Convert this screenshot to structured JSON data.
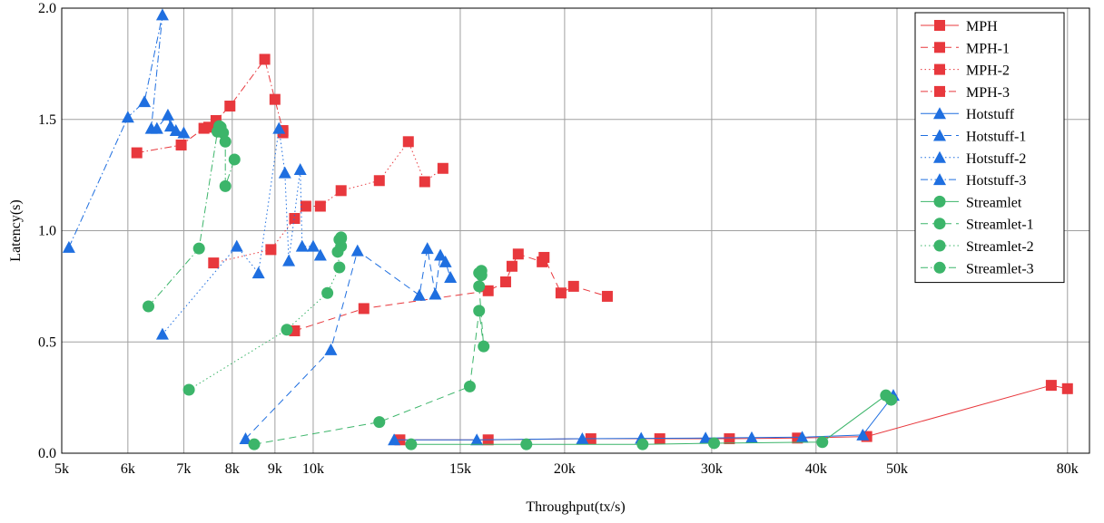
{
  "chart_data": {
    "type": "line",
    "xlabel": "Throughput(tx/s)",
    "ylabel": "Latency(s)",
    "x_scale": "log",
    "xlim": [
      5000,
      85000
    ],
    "ylim": [
      0,
      2.0
    ],
    "xticks": [
      {
        "v": 5000,
        "label": "5k"
      },
      {
        "v": 6000,
        "label": "6k"
      },
      {
        "v": 7000,
        "label": "7k"
      },
      {
        "v": 8000,
        "label": "8k"
      },
      {
        "v": 9000,
        "label": "9k"
      },
      {
        "v": 10000,
        "label": "10k"
      },
      {
        "v": 15000,
        "label": "15k"
      },
      {
        "v": 20000,
        "label": "20k"
      },
      {
        "v": 30000,
        "label": "30k"
      },
      {
        "v": 40000,
        "label": "40k"
      },
      {
        "v": 50000,
        "label": "50k"
      },
      {
        "v": 80000,
        "label": "80k"
      }
    ],
    "yticks": [
      {
        "v": 0.0,
        "label": "0.0"
      },
      {
        "v": 0.5,
        "label": "0.5"
      },
      {
        "v": 1.0,
        "label": "1.0"
      },
      {
        "v": 1.5,
        "label": "1.5"
      },
      {
        "v": 2.0,
        "label": "2.0"
      }
    ],
    "grid": true,
    "legend_position": "top-right",
    "series": [
      {
        "name": "MPH",
        "color": "#e8383d",
        "marker": "square",
        "dash": "solid",
        "points": [
          [
            12700,
            0.06
          ],
          [
            16200,
            0.06
          ],
          [
            21500,
            0.065
          ],
          [
            26000,
            0.065
          ],
          [
            31500,
            0.065
          ],
          [
            38000,
            0.068
          ],
          [
            46000,
            0.075
          ],
          [
            76500,
            0.305
          ],
          [
            80000,
            0.29
          ]
        ]
      },
      {
        "name": "MPH-1",
        "color": "#e8383d",
        "marker": "square",
        "dash": "dashed",
        "points": [
          [
            9500,
            0.55
          ],
          [
            11500,
            0.65
          ],
          [
            16200,
            0.73
          ],
          [
            17000,
            0.77
          ],
          [
            17300,
            0.84
          ],
          [
            17600,
            0.895
          ],
          [
            18800,
            0.86
          ],
          [
            18900,
            0.88
          ],
          [
            19800,
            0.72
          ],
          [
            20500,
            0.75
          ],
          [
            22500,
            0.705
          ]
        ]
      },
      {
        "name": "MPH-2",
        "color": "#e8383d",
        "marker": "square",
        "dash": "dotted",
        "points": [
          [
            7600,
            0.855
          ],
          [
            8900,
            0.915
          ],
          [
            9500,
            1.055
          ],
          [
            9800,
            1.11
          ],
          [
            10200,
            1.11
          ],
          [
            10800,
            1.18
          ],
          [
            12000,
            1.225
          ],
          [
            13000,
            1.4
          ],
          [
            13600,
            1.22
          ],
          [
            14300,
            1.28
          ]
        ]
      },
      {
        "name": "MPH-3",
        "color": "#e8383d",
        "marker": "square",
        "dash": "dashdot",
        "points": [
          [
            6150,
            1.35
          ],
          [
            6950,
            1.385
          ],
          [
            7400,
            1.46
          ],
          [
            7500,
            1.465
          ],
          [
            7650,
            1.495
          ],
          [
            7950,
            1.56
          ],
          [
            8750,
            1.77
          ],
          [
            9000,
            1.59
          ],
          [
            9200,
            1.45
          ],
          [
            9200,
            1.44
          ]
        ]
      },
      {
        "name": "Hotstuff",
        "color": "#1f6fe0",
        "marker": "triangle",
        "dash": "solid",
        "points": [
          [
            12500,
            0.06
          ],
          [
            15700,
            0.06
          ],
          [
            21000,
            0.065
          ],
          [
            24700,
            0.067
          ],
          [
            29500,
            0.068
          ],
          [
            33500,
            0.07
          ],
          [
            38500,
            0.072
          ],
          [
            45500,
            0.082
          ],
          [
            49500,
            0.26
          ]
        ]
      },
      {
        "name": "Hotstuff-1",
        "color": "#1f6fe0",
        "marker": "triangle",
        "dash": "dashed",
        "points": [
          [
            8300,
            0.065
          ],
          [
            10500,
            0.465
          ],
          [
            11300,
            0.91
          ],
          [
            13400,
            0.71
          ],
          [
            13700,
            0.92
          ],
          [
            14000,
            0.715
          ],
          [
            14200,
            0.89
          ],
          [
            14400,
            0.86
          ],
          [
            14600,
            0.79
          ]
        ]
      },
      {
        "name": "Hotstuff-2",
        "color": "#1f6fe0",
        "marker": "triangle",
        "dash": "dotted",
        "points": [
          [
            6600,
            0.535
          ],
          [
            8100,
            0.93
          ],
          [
            8600,
            0.81
          ],
          [
            9100,
            1.46
          ],
          [
            9250,
            1.26
          ],
          [
            9350,
            0.865
          ],
          [
            9650,
            1.275
          ],
          [
            9700,
            0.93
          ],
          [
            10000,
            0.93
          ],
          [
            10200,
            0.89
          ]
        ]
      },
      {
        "name": "Hotstuff-3",
        "color": "#1f6fe0",
        "marker": "triangle",
        "dash": "dashdot",
        "points": [
          [
            5100,
            0.925
          ],
          [
            6000,
            1.51
          ],
          [
            6280,
            1.58
          ],
          [
            6600,
            1.97
          ],
          [
            6400,
            1.46
          ],
          [
            6500,
            1.46
          ],
          [
            6700,
            1.52
          ],
          [
            6750,
            1.47
          ],
          [
            6850,
            1.45
          ],
          [
            7000,
            1.44
          ]
        ]
      },
      {
        "name": "Streamlet",
        "color": "#3cb56a",
        "marker": "circle",
        "dash": "solid",
        "points": [
          [
            13100,
            0.04
          ],
          [
            18000,
            0.04
          ],
          [
            24800,
            0.04
          ],
          [
            30200,
            0.045
          ],
          [
            40700,
            0.05
          ],
          [
            48500,
            0.26
          ],
          [
            49200,
            0.24
          ]
        ]
      },
      {
        "name": "Streamlet-1",
        "color": "#3cb56a",
        "marker": "circle",
        "dash": "dashed",
        "points": [
          [
            8500,
            0.04
          ],
          [
            12000,
            0.14
          ],
          [
            15400,
            0.3
          ],
          [
            15800,
            0.64
          ],
          [
            16000,
            0.48
          ],
          [
            15800,
            0.75
          ],
          [
            15900,
            0.82
          ],
          [
            15800,
            0.81
          ],
          [
            15900,
            0.8
          ]
        ]
      },
      {
        "name": "Streamlet-2",
        "color": "#3cb56a",
        "marker": "circle",
        "dash": "dotted",
        "points": [
          [
            7100,
            0.285
          ],
          [
            9300,
            0.555
          ],
          [
            10400,
            0.72
          ],
          [
            10750,
            0.835
          ],
          [
            10700,
            0.905
          ],
          [
            10800,
            0.93
          ],
          [
            10750,
            0.96
          ],
          [
            10800,
            0.965
          ],
          [
            10800,
            0.97
          ]
        ]
      },
      {
        "name": "Streamlet-3",
        "color": "#3cb56a",
        "marker": "circle",
        "dash": "dashdot",
        "points": [
          [
            6350,
            0.66
          ],
          [
            7300,
            0.92
          ],
          [
            7680,
            1.445
          ],
          [
            7750,
            1.465
          ],
          [
            7800,
            1.44
          ],
          [
            7720,
            1.47
          ],
          [
            7850,
            1.4
          ],
          [
            7850,
            1.2
          ],
          [
            8050,
            1.32
          ]
        ]
      }
    ]
  }
}
